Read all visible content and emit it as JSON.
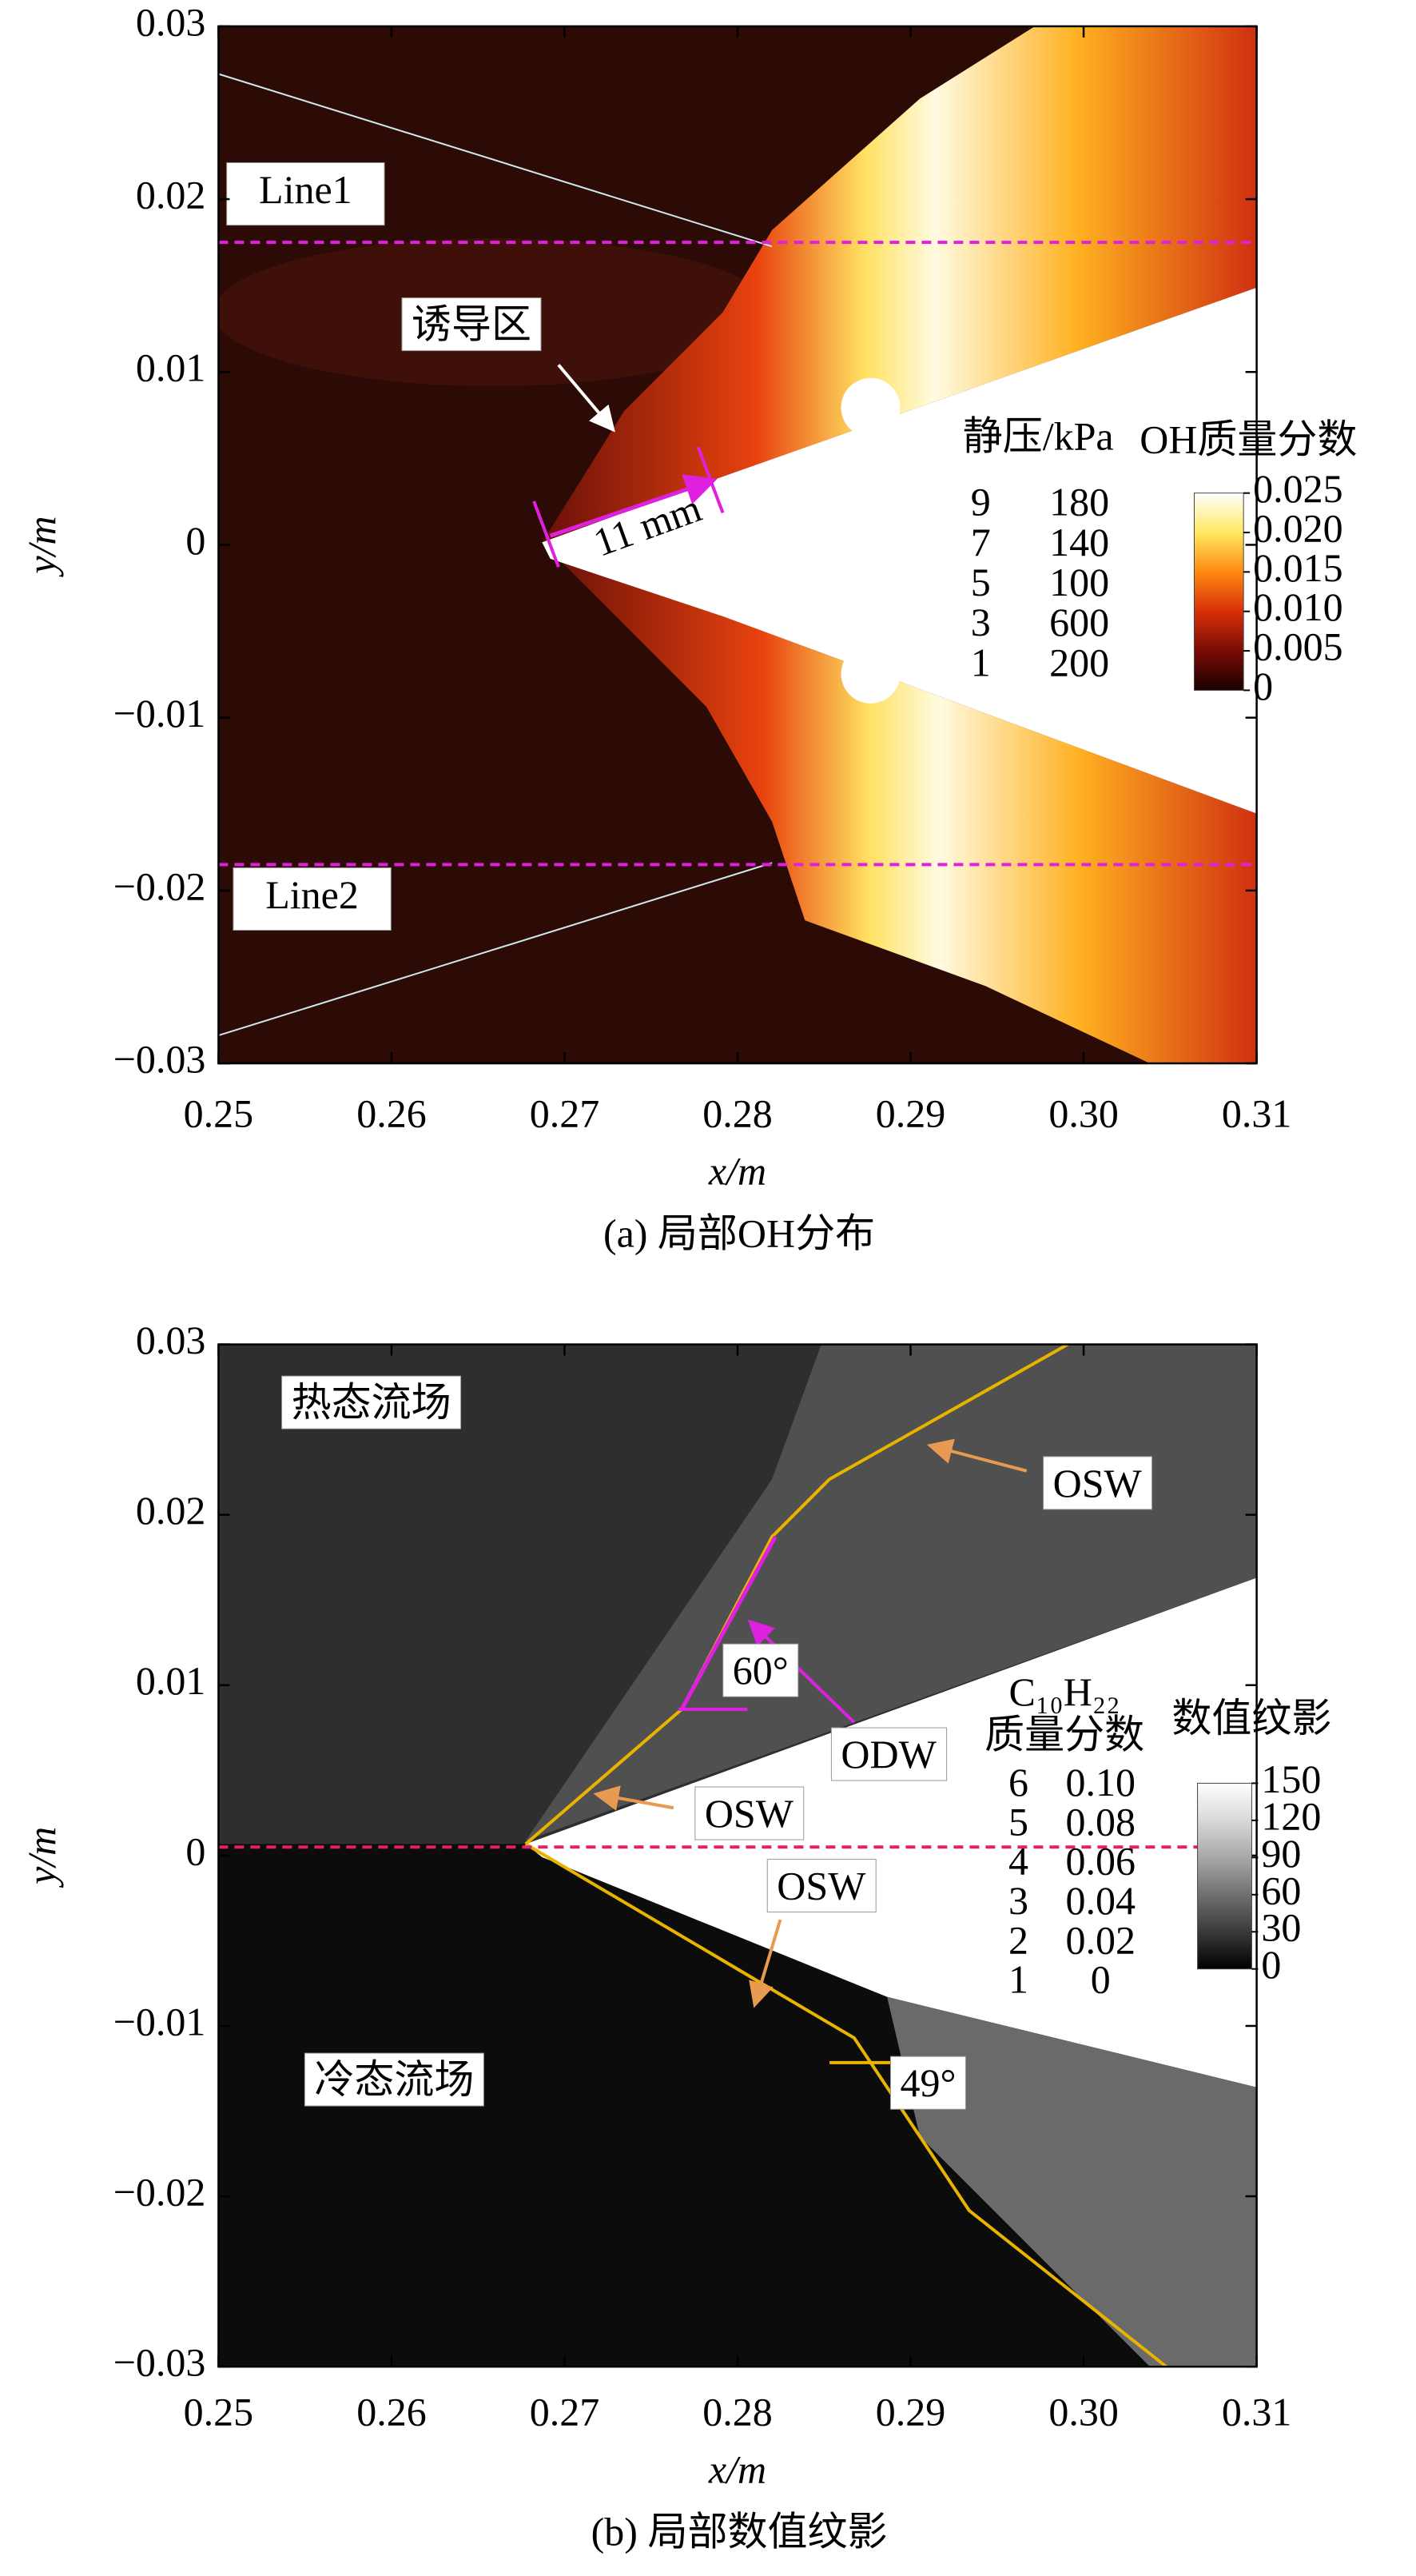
{
  "chart_data": [
    {
      "type": "contour",
      "caption": "(a) 局部OH分布",
      "xlabel": "x/m",
      "ylabel": "y/m",
      "xlim": [
        0.25,
        0.31
      ],
      "ylim": [
        -0.03,
        0.03
      ],
      "xticks": [
        0.25,
        0.26,
        0.27,
        0.28,
        0.29,
        {
          "value": 0.3,
          "label": "0.30"
        },
        0.31
      ],
      "yticks": [
        {
          "value": -0.03,
          "label": "−0.03"
        },
        {
          "value": -0.02,
          "label": "−0.02"
        },
        {
          "value": -0.01,
          "label": "−0.01"
        },
        0,
        0.01,
        0.02,
        0.03
      ],
      "reference_lines": [
        {
          "name": "Line1",
          "y": 0.0175
        },
        {
          "name": "Line2",
          "y": -0.0185
        }
      ],
      "reference_color": "#e020e0",
      "contour_legend": {
        "title_lines": [
          "静压/kPa"
        ],
        "levels": [
          9,
          7,
          5,
          3,
          1
        ],
        "values": [
          180,
          140,
          100,
          600,
          200
        ]
      },
      "colorbar": {
        "title": "OH质量分数",
        "lim": [
          0,
          0.025
        ],
        "ticks": [
          0,
          0.005,
          {
            "value": 0.01,
            "label": "0.010"
          },
          0.015,
          {
            "value": 0.02,
            "label": "0.020"
          },
          0.025
        ],
        "colors": [
          "#1a0000",
          "#7a0c04",
          "#d8300a",
          "#ff8a10",
          "#ffe860",
          "#ffffff"
        ]
      },
      "annotations": [
        "诱导区",
        "11 mm"
      ]
    },
    {
      "type": "contour",
      "caption": "(b) 局部数值纹影",
      "xlabel": "x/m",
      "ylabel": "y/m",
      "xlim": [
        0.25,
        0.31
      ],
      "ylim": [
        -0.03,
        0.03
      ],
      "xticks": [
        0.25,
        0.26,
        0.27,
        0.28,
        0.29,
        {
          "value": 0.3,
          "label": "0.30"
        },
        0.31
      ],
      "yticks": [
        {
          "value": -0.03,
          "label": "−0.03"
        },
        {
          "value": -0.02,
          "label": "−0.02"
        },
        {
          "value": -0.01,
          "label": "−0.01"
        },
        0,
        0.01,
        0.02,
        0.03
      ],
      "reference_lines": [
        {
          "y": 0.0005
        }
      ],
      "reference_color": "#e0206a",
      "contour_legend": {
        "title_lines": [
          "C₁₀H₂₂",
          "质量分数"
        ],
        "levels": [
          6,
          5,
          4,
          3,
          2,
          1
        ],
        "values": [
          {
            "value": 0.1,
            "label": "0.10"
          },
          0.08,
          0.06,
          0.04,
          0.02,
          0
        ]
      },
      "colorbar": {
        "title": "数值纹影",
        "lim": [
          0,
          150
        ],
        "ticks": [
          0,
          30,
          60,
          90,
          120,
          150
        ],
        "colors": [
          "#000000",
          "#3a3a3a",
          "#707070",
          "#a8a8a8",
          "#d8d8d8",
          "#ffffff"
        ]
      },
      "annotations": [
        "热态流场",
        "冷态流场",
        "OSW",
        "ODW",
        "60°",
        "OSW",
        "OSW",
        "49°"
      ]
    }
  ]
}
